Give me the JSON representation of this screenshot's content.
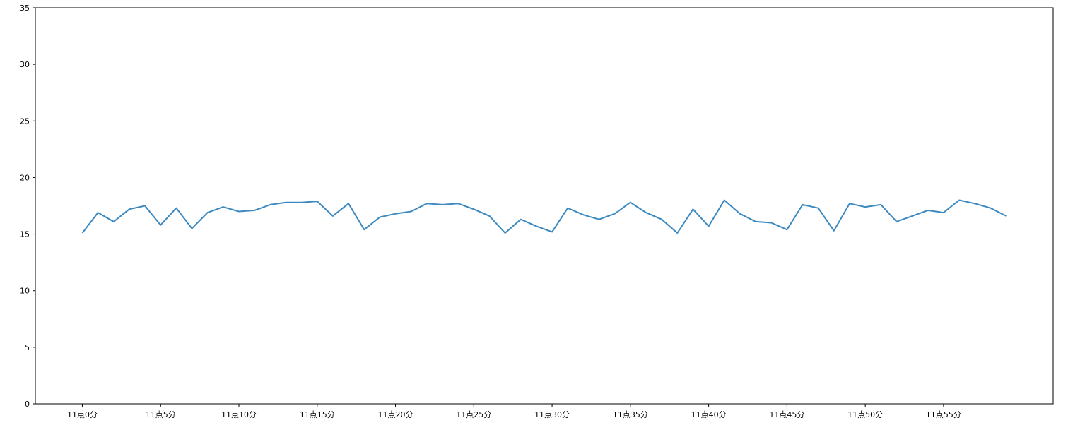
{
  "chart_data": {
    "type": "line",
    "title": "",
    "xlabel": "",
    "ylabel": "",
    "ylim": [
      0,
      35
    ],
    "xlim": [
      -3,
      62
    ],
    "grid": false,
    "yticks": [
      0,
      5,
      10,
      15,
      20,
      25,
      30,
      35
    ],
    "xticks": [
      {
        "x": 0,
        "label": "11点0分"
      },
      {
        "x": 5,
        "label": "11点5分"
      },
      {
        "x": 10,
        "label": "11点10分"
      },
      {
        "x": 15,
        "label": "11点15分"
      },
      {
        "x": 20,
        "label": "11点20分"
      },
      {
        "x": 25,
        "label": "11点25分"
      },
      {
        "x": 30,
        "label": "11点30分"
      },
      {
        "x": 35,
        "label": "11点35分"
      },
      {
        "x": 40,
        "label": "11点40分"
      },
      {
        "x": 45,
        "label": "11点45分"
      },
      {
        "x": 50,
        "label": "11点50分"
      },
      {
        "x": 55,
        "label": "11点55分"
      }
    ],
    "series": [
      {
        "color": "#3b89c0",
        "x": [
          0,
          1,
          2,
          3,
          4,
          5,
          6,
          7,
          8,
          9,
          10,
          11,
          12,
          13,
          14,
          15,
          16,
          17,
          18,
          19,
          20,
          21,
          22,
          23,
          24,
          25,
          26,
          27,
          28,
          29,
          30,
          31,
          32,
          33,
          34,
          35,
          36,
          37,
          38,
          39,
          40,
          41,
          42,
          43,
          44,
          45,
          46,
          47,
          48,
          49,
          50,
          51,
          52,
          53,
          54,
          55,
          56,
          57,
          58,
          59
        ],
        "values": [
          15.1,
          16.9,
          16.1,
          17.2,
          17.5,
          15.8,
          17.3,
          15.5,
          16.9,
          17.4,
          17.0,
          17.1,
          17.6,
          17.8,
          17.8,
          17.9,
          16.6,
          17.7,
          15.4,
          16.5,
          16.8,
          17.0,
          17.7,
          17.6,
          17.7,
          17.2,
          16.6,
          15.1,
          16.3,
          15.7,
          15.2,
          17.3,
          16.7,
          16.3,
          16.8,
          17.8,
          16.9,
          16.3,
          15.1,
          17.2,
          15.7,
          18.0,
          16.8,
          16.1,
          16.0,
          15.4,
          17.6,
          17.3,
          15.3,
          17.7,
          17.4,
          17.6,
          16.1,
          16.6,
          17.1,
          16.9,
          18.0,
          17.7,
          17.3,
          16.6
        ]
      }
    ]
  }
}
